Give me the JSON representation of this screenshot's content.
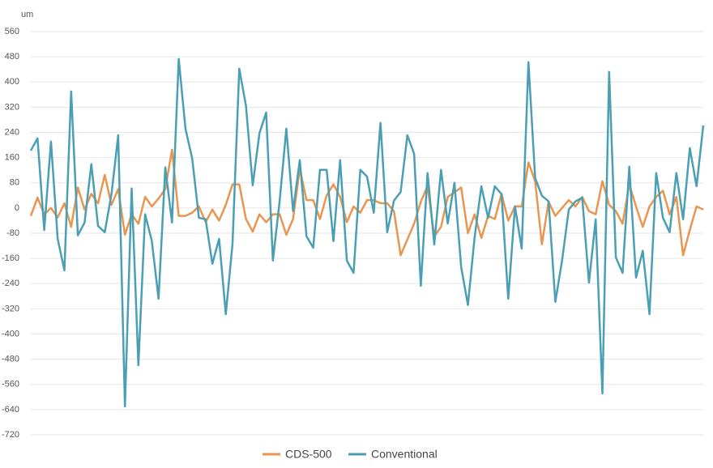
{
  "chart_data": {
    "type": "line",
    "y_label": "um",
    "ylim": [
      -720,
      560
    ],
    "yticks": [
      -720,
      -640,
      -560,
      -480,
      -400,
      -320,
      -240,
      -160,
      -80,
      0,
      80,
      160,
      240,
      320,
      400,
      480,
      560
    ],
    "grid": true,
    "legend": "bottom",
    "series": [
      {
        "name": "CDS-500",
        "color": "#e8964f",
        "values": [
          -25,
          33,
          -20,
          0,
          -30,
          15,
          -60,
          65,
          -5,
          45,
          15,
          105,
          10,
          60,
          -85,
          -20,
          -50,
          35,
          5,
          30,
          60,
          185,
          -25,
          -25,
          -15,
          5,
          -45,
          -5,
          -40,
          10,
          75,
          75,
          -35,
          -75,
          -20,
          -45,
          -20,
          -20,
          -85,
          -35,
          125,
          25,
          25,
          -35,
          40,
          75,
          35,
          -45,
          5,
          -15,
          25,
          25,
          15,
          15,
          -10,
          -150,
          -100,
          -50,
          20,
          70,
          -90,
          -60,
          35,
          50,
          65,
          -80,
          -20,
          -95,
          -25,
          -35,
          45,
          -40,
          5,
          5,
          145,
          85,
          -115,
          20,
          -25,
          0,
          25,
          5,
          35,
          -10,
          -20,
          85,
          10,
          -10,
          -50,
          75,
          5,
          -60,
          5,
          35,
          55,
          -20,
          35,
          -150,
          -70,
          5,
          -5
        ]
      },
      {
        "name": "Conventional",
        "color": "#4a9fb5",
        "values": [
          182,
          221,
          -70,
          211,
          -98,
          -198,
          370,
          -87,
          -46,
          139,
          -57,
          -77,
          44,
          231,
          -630,
          62,
          -499,
          -20,
          -105,
          -288,
          129,
          -46,
          473,
          252,
          157,
          -31,
          -36,
          -177,
          -98,
          -337,
          -113,
          442,
          324,
          72,
          237,
          303,
          -167,
          21,
          252,
          -10,
          152,
          -90,
          -126,
          121,
          121,
          -105,
          152,
          -167,
          -206,
          121,
          100,
          -15,
          270,
          -77,
          23,
          51,
          231,
          172,
          -247,
          111,
          -116,
          121,
          -49,
          80,
          -188,
          -308,
          -93,
          69,
          -31,
          69,
          44,
          -288,
          5,
          -129,
          463,
          95,
          39,
          21,
          -298,
          -167,
          -5,
          21,
          33,
          -237,
          -36,
          -589,
          432,
          -157,
          -206,
          131,
          -221,
          -136,
          -337,
          111,
          -31,
          -77,
          111,
          -36,
          190,
          69,
          262
        ]
      }
    ]
  }
}
